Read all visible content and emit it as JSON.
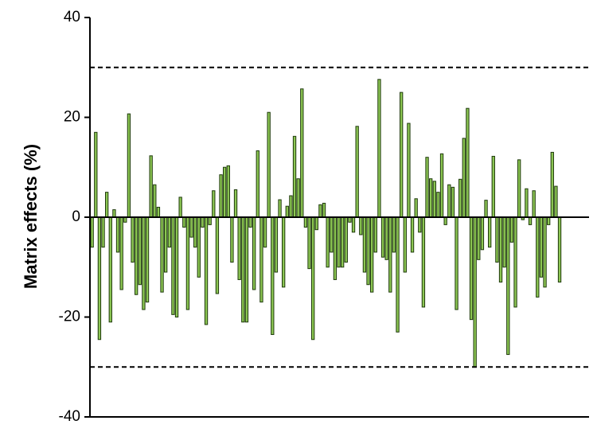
{
  "chart_data": {
    "type": "bar",
    "ylabel": "Matrix effects (%)",
    "ylim": [
      -40,
      40
    ],
    "yticks": [
      -40,
      -20,
      0,
      20,
      40
    ],
    "reference_lines": [
      30,
      -30
    ],
    "color": "#8cc653",
    "edge_color": "#1f3a0c",
    "values": [
      -6,
      17,
      -24.5,
      -6,
      5,
      -21,
      1.5,
      -7,
      -14.5,
      -1,
      20.7,
      -9,
      -15.5,
      -13.5,
      -18.5,
      -17,
      12.3,
      6.5,
      2,
      -15,
      -11,
      -6,
      -19.5,
      -20,
      4,
      -2,
      -18.5,
      -4,
      -6,
      -12,
      -2,
      -21.5,
      -1.5,
      5.3,
      -15.3,
      8.5,
      10,
      10.3,
      -9,
      5.5,
      -12.5,
      -21,
      -21,
      -2,
      -14.5,
      13.3,
      -17,
      -6,
      21,
      -23.5,
      -11,
      3.5,
      -14,
      2.2,
      4.3,
      16.2,
      7.7,
      25.7,
      -2,
      -10.3,
      -24.5,
      -2.5,
      2.5,
      2.8,
      -10,
      -7,
      -12.5,
      -10,
      -10,
      -9,
      -1,
      -3,
      18.2,
      -3.5,
      -11,
      -13.5,
      -15,
      -7,
      27.6,
      -8,
      -8.5,
      -15,
      -7,
      -23,
      25,
      -11,
      18.8,
      -7,
      3.7,
      -3,
      -18,
      12,
      7.7,
      7.2,
      5,
      12.7,
      -1.5,
      6.5,
      6,
      -18.5,
      7.6,
      15.8,
      21.8,
      -20.5,
      -30,
      -8.5,
      -6.5,
      3.4,
      -6,
      12.2,
      -9,
      -13,
      -10,
      -27.5,
      -5,
      -18,
      11.5,
      -0.5,
      5.7,
      -1.5,
      5.3,
      -16,
      -12,
      -14,
      -1.5,
      13,
      6.2,
      -13
    ]
  }
}
